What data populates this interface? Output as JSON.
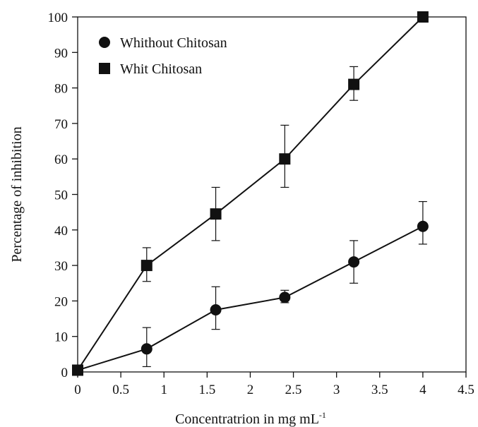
{
  "chart_data": {
    "type": "line",
    "xlabel": "Concentratrion in mg mL",
    "xlabel_superscript": "-1",
    "ylabel": "Percentage of inhibition",
    "xlim": [
      0,
      4.5
    ],
    "ylim": [
      0,
      100
    ],
    "x_ticks": [
      "0",
      "0.5",
      "1",
      "1.5",
      "2",
      "2.5",
      "3",
      "3.5",
      "4",
      "4.5"
    ],
    "y_ticks": [
      "0",
      "10",
      "20",
      "30",
      "40",
      "50",
      "60",
      "70",
      "80",
      "90",
      "100"
    ],
    "grid": false,
    "legend_position": "top-left",
    "series": [
      {
        "name": "Whithout Chitosan",
        "marker": "circle",
        "color": "#111111",
        "x": [
          0,
          0.8,
          1.6,
          2.4,
          3.2,
          4.0
        ],
        "y": [
          0.5,
          6.5,
          17.5,
          21,
          31,
          41
        ],
        "err_low": [
          0,
          1.5,
          12,
          19.5,
          25,
          36
        ],
        "err_high": [
          0,
          12.5,
          24,
          23,
          37,
          48
        ]
      },
      {
        "name": "Whit Chitosan",
        "marker": "square",
        "color": "#111111",
        "x": [
          0,
          0.8,
          1.6,
          2.4,
          3.2,
          4.0
        ],
        "y": [
          0.5,
          30,
          44.5,
          60,
          81,
          100
        ],
        "err_low": [
          0,
          25.5,
          37,
          52,
          76.5,
          100
        ],
        "err_high": [
          0,
          35,
          52,
          69.5,
          86,
          100
        ]
      }
    ]
  }
}
